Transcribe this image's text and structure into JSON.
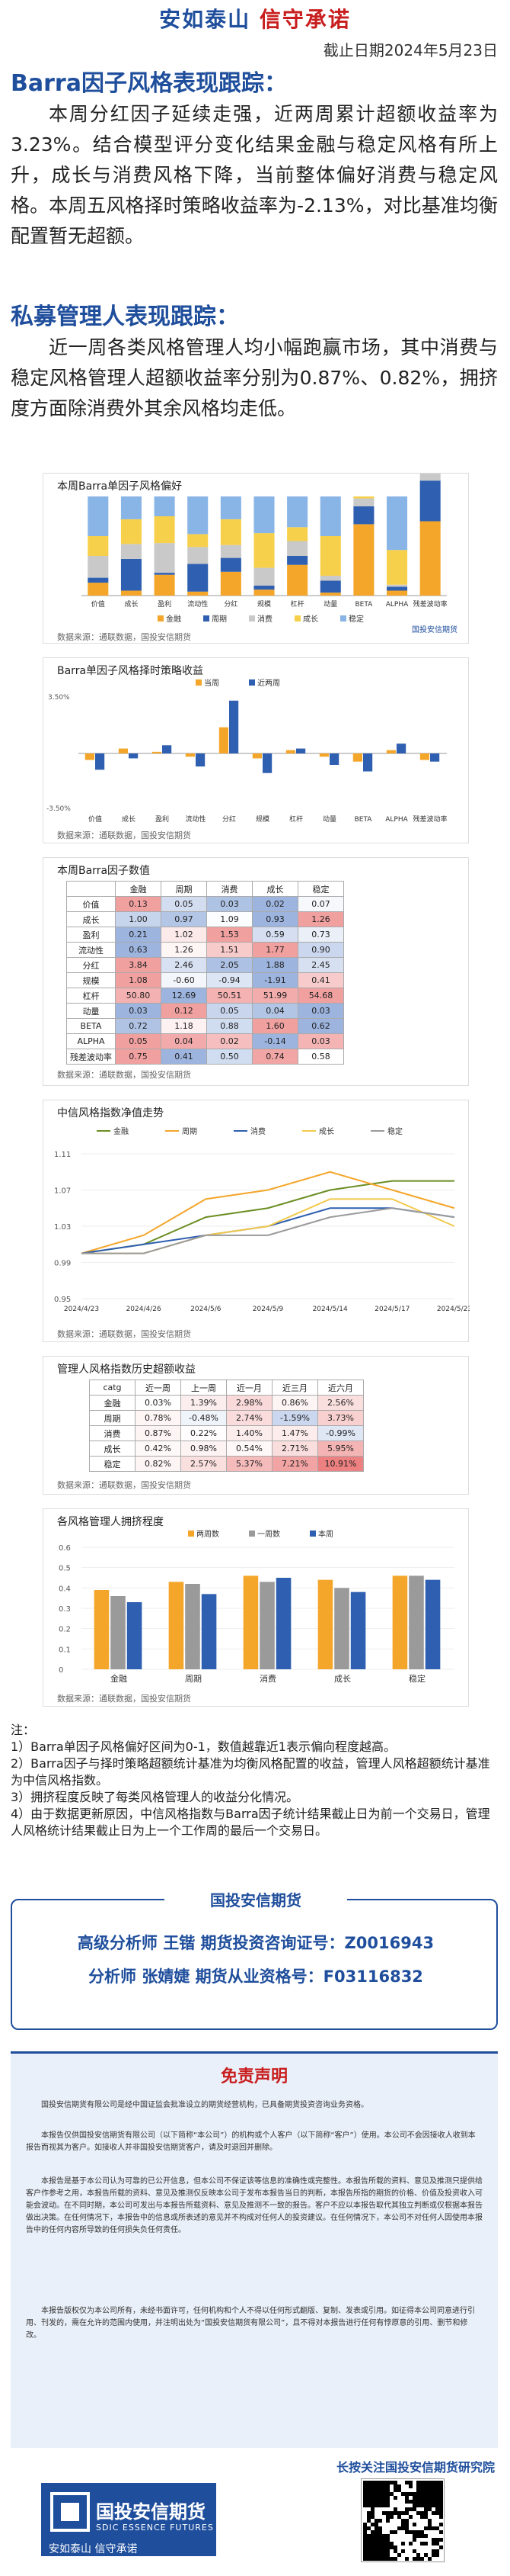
{
  "header": {
    "slogan_left": "安如泰山",
    "slogan_right": "信守承诺",
    "date": "截止日期2024年5月23日"
  },
  "barra": {
    "title": "Barra因子风格表现跟踪：",
    "text": "本周分红因子延续走强，近两周累计超额收益率为3.23%。结合模型评分变化结果金融与稳定风格有所上升，成长与消费风格下降，当前整体偏好消费与稳定风格。本周五风格择时策略收益率为-2.13%，对比基准均衡配置暂无超额。"
  },
  "private": {
    "title": "私募管理人表现跟踪：",
    "text": "近一周各类风格管理人均小幅跑赢市场，其中消费与稳定风格管理人超额收益率分别为0.87%、0.82%，拥挤度方面除消费外其余风格均走低。"
  },
  "chart1": {
    "title": "本周Barra单因子风格偏好",
    "note": "数据来源：通联数据，国投安信期货",
    "logo": "国投安信期货",
    "legend": [
      "金融",
      "周期",
      "消费",
      "成长",
      "稳定"
    ],
    "colors": [
      "#f4a62a",
      "#2f5fb0",
      "#c9c9c9",
      "#f7d04b",
      "#88b4e6"
    ],
    "chart_data": {
      "type": "bar",
      "categories": [
        "价值",
        "成长",
        "盈利",
        "流动性",
        "分红",
        "规模",
        "杠杆",
        "动量",
        "BETA",
        "ALPHA",
        "残差波动率"
      ],
      "series": [
        {
          "name": "金融",
          "values": [
            0.13,
            0.05,
            0.21,
            0.04,
            0.24,
            0.06,
            0.31,
            0.03,
            0.72,
            0.05,
            0.75
          ]
        },
        {
          "name": "周期",
          "values": [
            0.05,
            0.32,
            0.02,
            0.28,
            0.14,
            0.04,
            0.09,
            0.12,
            0.18,
            0.04,
            0.41
          ]
        },
        {
          "name": "消费",
          "values": [
            0.22,
            0.15,
            0.3,
            0.17,
            0.13,
            0.18,
            0.15,
            0.05,
            0.08,
            0.02,
            0.5
          ]
        },
        {
          "name": "成长",
          "values": [
            0.2,
            0.25,
            0.27,
            0.13,
            0.26,
            0.35,
            0.14,
            0.4,
            0.02,
            0.35,
            0.06
          ]
        },
        {
          "name": "稳定",
          "values": [
            0.4,
            0.23,
            0.2,
            0.38,
            0.23,
            0.37,
            0.31,
            0.4,
            0.0,
            0.54,
            0.0
          ]
        }
      ],
      "ylim": [
        0,
        1
      ]
    }
  },
  "chart2": {
    "title": "Barra单因子风格择时策略收益",
    "note": "数据来源：通联数据，国投安信期货",
    "legend": [
      "当周",
      "近两周"
    ],
    "colors": [
      "#f4a62a",
      "#2f5fb0"
    ],
    "chart_data": {
      "type": "bar",
      "categories": [
        "价值",
        "成长",
        "盈利",
        "流动性",
        "分红",
        "规模",
        "杠杆",
        "动量",
        "BETA",
        "ALPHA",
        "残差波动率"
      ],
      "series": [
        {
          "name": "当周",
          "values": [
            -0.4,
            0.3,
            0.1,
            -0.2,
            1.6,
            -0.3,
            0.2,
            -0.2,
            -0.5,
            0.2,
            -0.4
          ]
        },
        {
          "name": "近两周",
          "values": [
            -1.0,
            -0.3,
            0.5,
            -0.8,
            3.23,
            -1.2,
            0.3,
            -0.7,
            -1.1,
            0.6,
            -0.5
          ]
        }
      ],
      "ylim": [
        -3.5,
        3.5
      ],
      "ytick_top": "3.50%",
      "ytick_bottom": "-3.50%"
    }
  },
  "table1": {
    "title": "本周Barra因子数值",
    "note": "数据来源：通联数据，国投安信期货",
    "headers": [
      "",
      "金融",
      "周期",
      "消费",
      "成长",
      "稳定"
    ],
    "rows": [
      [
        "价值",
        "0.13",
        "0.05",
        "0.03",
        "0.02",
        "0.07"
      ],
      [
        "成长",
        "1.00",
        "0.97",
        "1.09",
        "0.93",
        "1.26"
      ],
      [
        "盈利",
        "0.21",
        "1.02",
        "1.53",
        "0.59",
        "0.73"
      ],
      [
        "流动性",
        "0.63",
        "1.26",
        "1.51",
        "1.77",
        "0.90"
      ],
      [
        "分红",
        "3.84",
        "2.46",
        "2.05",
        "1.88",
        "2.45"
      ],
      [
        "规模",
        "1.08",
        "-0.60",
        "-0.94",
        "-1.91",
        "0.41"
      ],
      [
        "杠杆",
        "50.80",
        "12.69",
        "50.51",
        "51.99",
        "54.68"
      ],
      [
        "动量",
        "0.03",
        "0.12",
        "0.05",
        "0.04",
        "0.03"
      ],
      [
        "BETA",
        "0.72",
        "1.18",
        "0.88",
        "1.60",
        "0.62"
      ],
      [
        "ALPHA",
        "0.05",
        "0.04",
        "0.02",
        "-0.14",
        "0.03"
      ],
      [
        "残差波动率",
        "0.75",
        "0.41",
        "0.50",
        "0.74",
        "0.58"
      ]
    ]
  },
  "chart3": {
    "title": "中信风格指数净值走势",
    "note": "数据来源：通联数据，国投安信期货",
    "legend": [
      "金融",
      "周期",
      "消费",
      "成长",
      "稳定"
    ],
    "colors": [
      "#6b8e23",
      "#f4a62a",
      "#2f5fb0",
      "#f2c94c",
      "#9a9a9a"
    ],
    "chart_data": {
      "type": "line",
      "x": [
        "2024/4/23",
        "2024/4/26",
        "2024/5/6",
        "2024/5/9",
        "2024/5/14",
        "2024/5/17",
        "2024/5/23"
      ],
      "series": [
        {
          "name": "金融",
          "values": [
            1.0,
            1.01,
            1.04,
            1.05,
            1.07,
            1.08,
            1.08
          ]
        },
        {
          "name": "周期",
          "values": [
            1.0,
            1.02,
            1.06,
            1.07,
            1.09,
            1.07,
            1.05
          ]
        },
        {
          "name": "消费",
          "values": [
            1.0,
            1.01,
            1.02,
            1.03,
            1.05,
            1.05,
            1.04
          ]
        },
        {
          "name": "成长",
          "values": [
            1.0,
            1.0,
            1.02,
            1.03,
            1.06,
            1.06,
            1.03
          ]
        },
        {
          "name": "稳定",
          "values": [
            1.0,
            1.0,
            1.02,
            1.02,
            1.04,
            1.05,
            1.04
          ]
        }
      ],
      "yticks": [
        "0.95",
        "0.99",
        "1.03",
        "1.07",
        "1.11"
      ],
      "ylim": [
        0.95,
        1.11
      ]
    }
  },
  "table2": {
    "title": "管理人风格指数历史超额收益",
    "note": "数据来源：通联数据，国投安信期货",
    "headers": [
      "catg",
      "近一周",
      "上一周",
      "近一月",
      "近三月",
      "近六月"
    ],
    "rows": [
      [
        "金融",
        "0.03%",
        "1.39%",
        "2.98%",
        "0.86%",
        "2.56%"
      ],
      [
        "周期",
        "0.78%",
        "-0.48%",
        "2.74%",
        "-1.59%",
        "3.73%"
      ],
      [
        "消费",
        "0.87%",
        "0.22%",
        "1.40%",
        "1.47%",
        "-0.99%"
      ],
      [
        "成长",
        "0.42%",
        "0.98%",
        "0.54%",
        "2.71%",
        "5.95%"
      ],
      [
        "稳定",
        "0.82%",
        "2.57%",
        "5.37%",
        "7.21%",
        "10.91%"
      ]
    ]
  },
  "chart4": {
    "title": "各风格管理人拥挤程度",
    "note": "数据来源：通联数据，国投安信期货",
    "legend": [
      "两周数",
      "一周数",
      "本周"
    ],
    "colors": [
      "#f4a62a",
      "#9a9a9a",
      "#2f5fb0"
    ],
    "chart_data": {
      "type": "bar",
      "categories": [
        "金融",
        "周期",
        "消费",
        "成长",
        "稳定"
      ],
      "series": [
        {
          "name": "两周数",
          "values": [
            0.39,
            0.43,
            0.46,
            0.44,
            0.46
          ]
        },
        {
          "name": "一周数",
          "values": [
            0.36,
            0.42,
            0.43,
            0.4,
            0.46
          ]
        },
        {
          "name": "本周",
          "values": [
            0.33,
            0.37,
            0.45,
            0.38,
            0.44
          ]
        }
      ],
      "yticks": [
        "0",
        "0.1",
        "0.2",
        "0.3",
        "0.4",
        "0.5",
        "0.6"
      ],
      "ylim": [
        0,
        0.6
      ]
    }
  },
  "notes": {
    "head": "注：",
    "items": [
      "1）Barra单因子风格偏好区间为0-1，数值越靠近1表示偏向程度越高。",
      "2）Barra因子与择时策略超额统计基准为均衡风格配置的收益，管理人风格超额统计基准为中信风格指数。",
      "3）拥挤程度反映了每类风格管理人的收益分化情况。",
      "4）由于数据更新原因，中信风格指数与Barra因子统计结果截止日为前一个交易日，管理人风格统计结果截止日为上一个工作周的最后一个交易日。"
    ]
  },
  "analyst": {
    "head": "国投安信期货",
    "line1": "高级分析师  王锴  期货投资咨询证号：Z0016943",
    "line2": "分析师  张婧婕  期货从业资格号：F03116832"
  },
  "disclaimer": {
    "title": "免责声明",
    "paras": [
      "国投安信期货有限公司是经中国证监会批准设立的期货经营机构，已具备期货投资咨询业务资格。",
      "本报告仅供国投安信期货有限公司（以下简称“本公司”）的机构或个人客户（以下简称“客户”）使用。本公司不会因接收人收到本报告而视其为客户。如接收人并非国投安信期货客户，请及时退回并删除。",
      "本报告是基于本公司认为可靠的已公开信息，但本公司不保证该等信息的准确性或完整性。本报告所载的资料、意见及推测只提供给客户作参考之用，本报告所载的资料、意见及推测仅反映本公司于发布本报告当日的判断，本报告所指的期货的价格、价值及投资收入可能会波动。在不同时期，本公司可发出与本报告所载资料、意见及推测不一致的报告。客户不应以本报告取代其独立判断或仅根据本报告做出决策。在任何情况下，本报告中的信息或所表述的意见并不构成对任何人的投资建议。在任何情况下，本公司不对任何人因使用本报告中的任何内容所导致的任何损失负任何责任。",
      "本报告版权仅为本公司所有，未经书面许可，任何机构和个人不得以任何形式翻版、复制、发表或引用。如征得本公司同意进行引用、刊发的，需在允许的范围内使用，并注明出处为“国投安信期货有限公司”，且不得对本报告进行任何有悖原意的引用、删节和修改。"
    ]
  },
  "footer": {
    "follow": "长按关注国投安信期货研究院",
    "brand_cn": "国投安信期货",
    "brand_en": "SDIC ESSENCE FUTURES",
    "brand_slogan": "安如泰山  信守承诺"
  }
}
